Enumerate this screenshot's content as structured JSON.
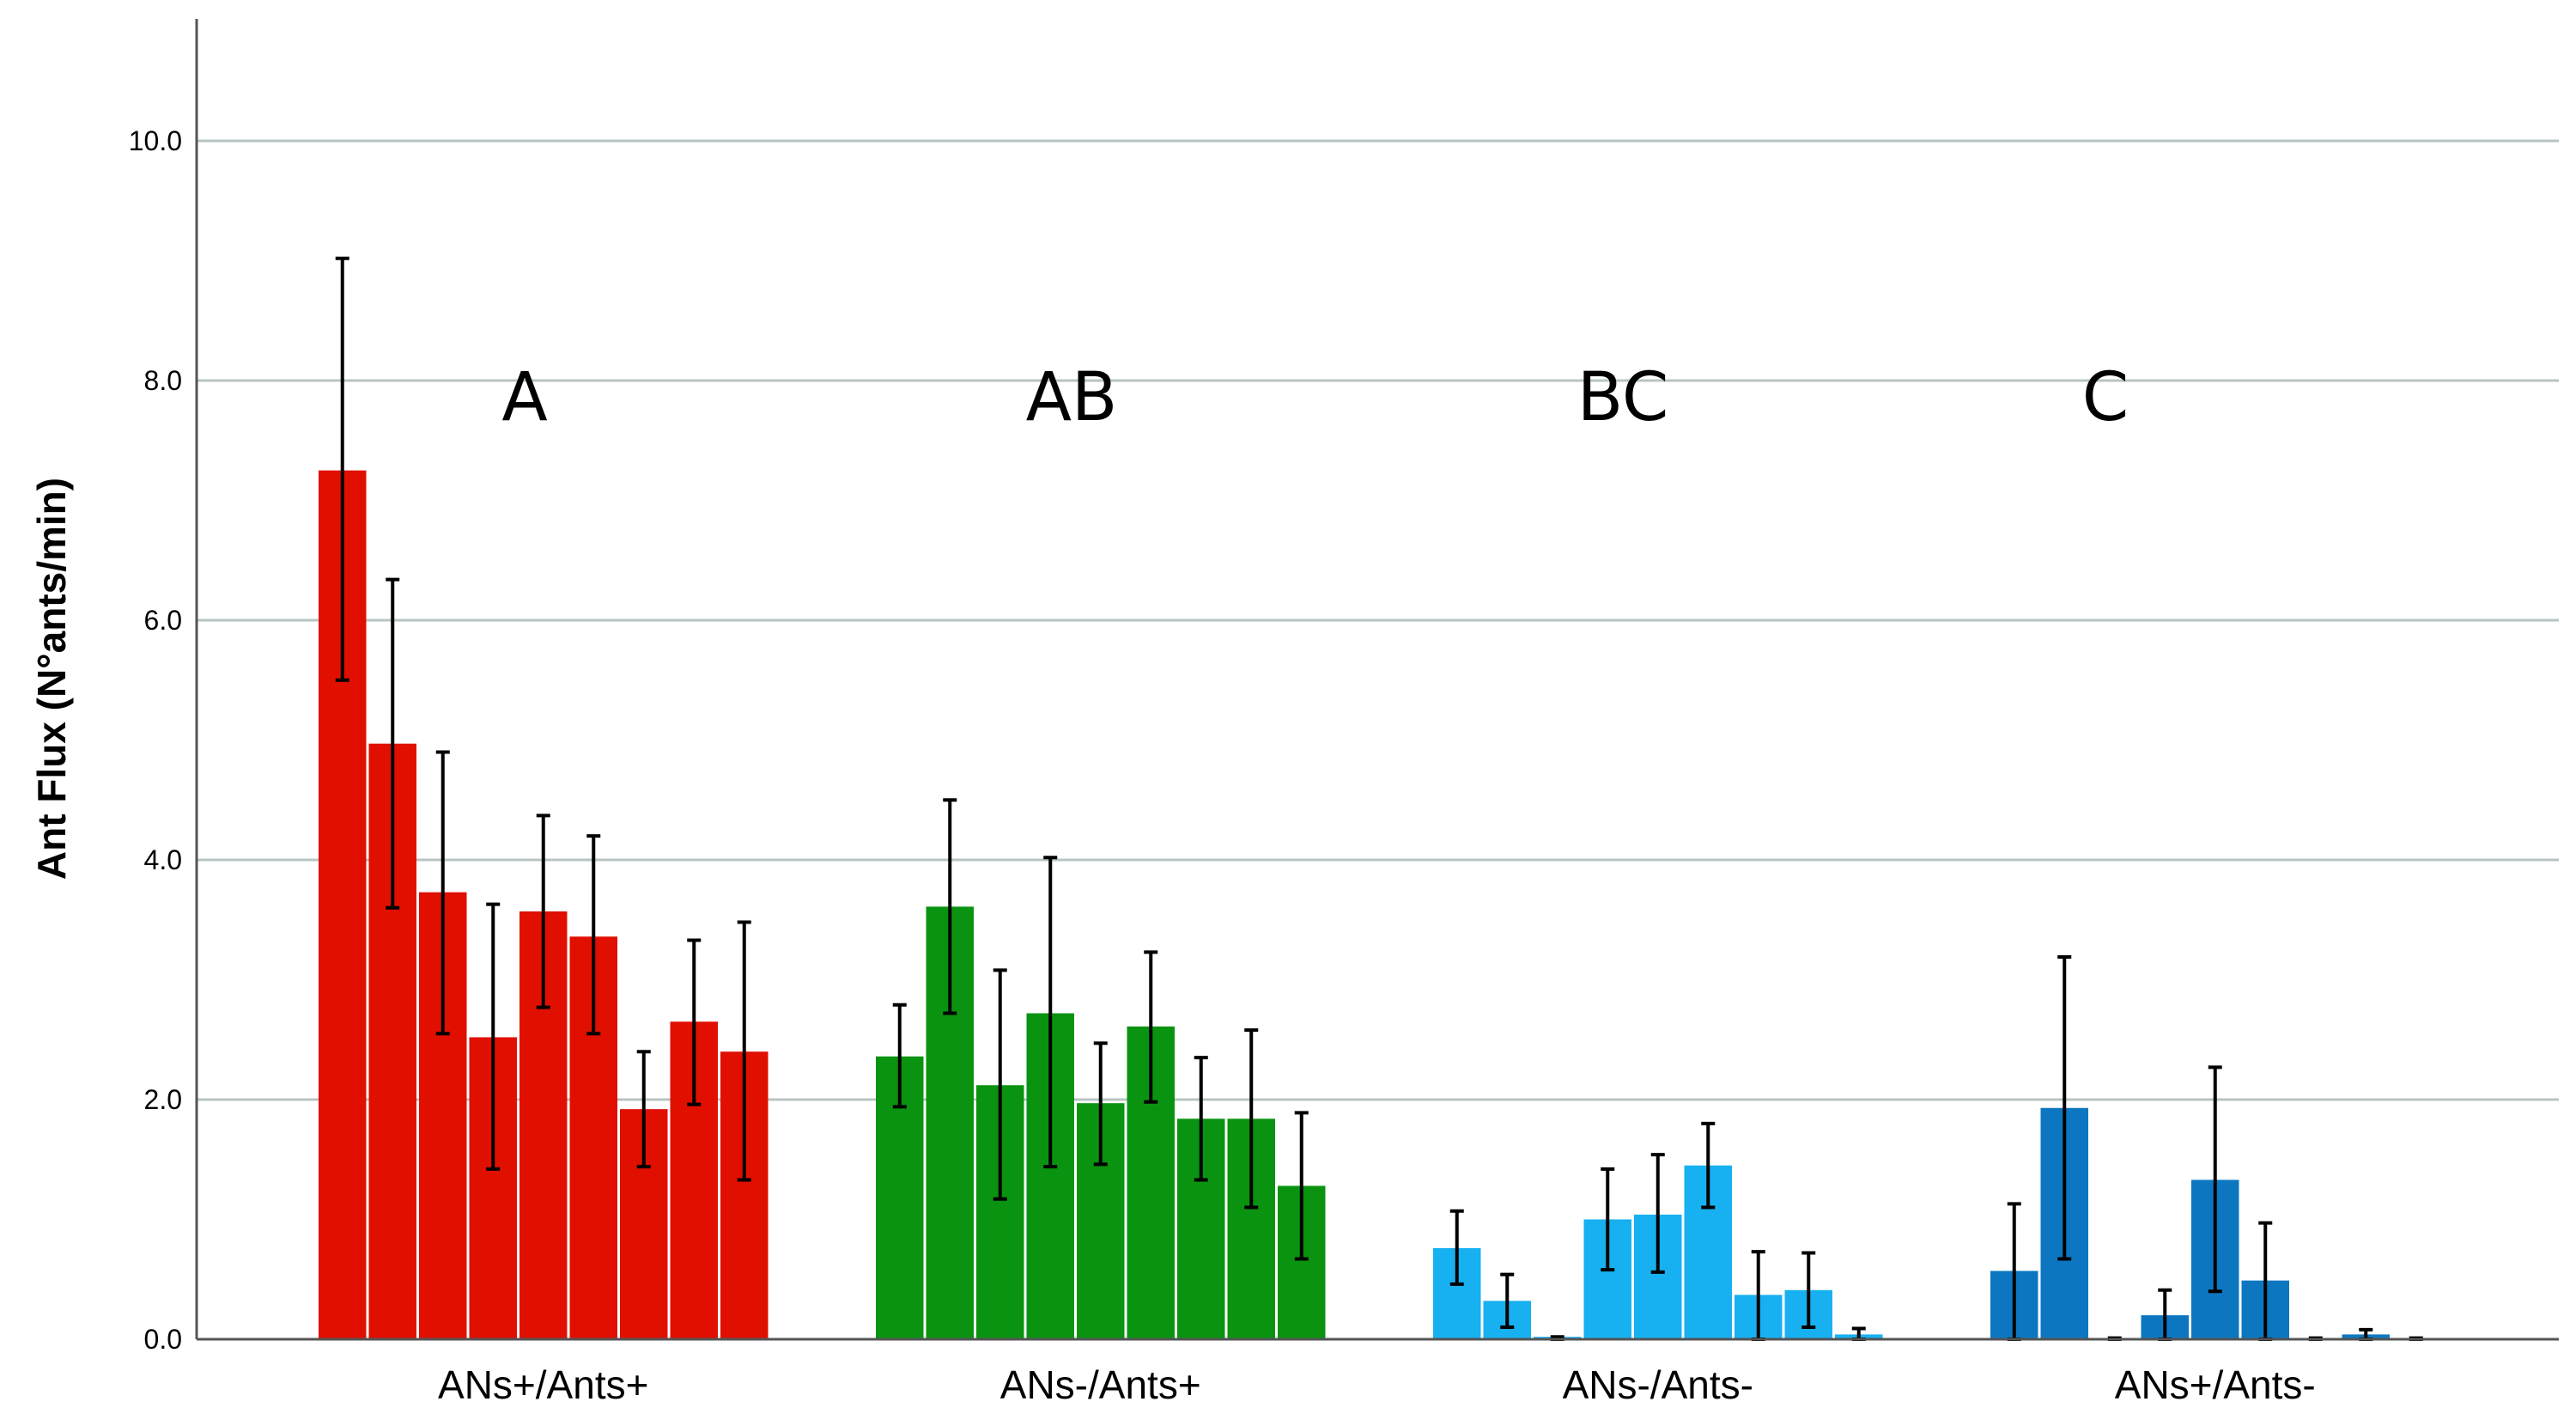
{
  "chart_data": {
    "type": "bar",
    "ylabel": "Ant Flux (N°ants/min)",
    "xlabel": "",
    "ylim": [
      0,
      11
    ],
    "yticks": [
      0,
      2,
      4,
      6,
      8,
      10
    ],
    "ytick_labels": [
      "0.0",
      "2.0",
      "4.0",
      "6.0",
      "8.0",
      "10.0"
    ],
    "grid": true,
    "groups": [
      {
        "name": "ANs+/Ants+",
        "letter": "A",
        "color": "#E00F00",
        "values": [
          7.25,
          4.97,
          3.73,
          2.52,
          3.57,
          3.36,
          1.92,
          2.65,
          2.4
        ],
        "error_low": [
          5.5,
          3.6,
          2.55,
          1.42,
          2.77,
          2.55,
          1.44,
          1.96,
          1.33
        ],
        "error_high": [
          9.02,
          6.34,
          4.9,
          3.63,
          4.37,
          4.2,
          2.4,
          3.33,
          3.48
        ]
      },
      {
        "name": "ANs-/Ants+",
        "letter": "AB",
        "color": "#0A9310",
        "values": [
          2.36,
          3.61,
          2.12,
          2.72,
          1.97,
          2.61,
          1.84,
          1.84,
          1.28
        ],
        "error_low": [
          1.94,
          2.72,
          1.17,
          1.44,
          1.46,
          1.98,
          1.33,
          1.1,
          0.67
        ],
        "error_high": [
          2.79,
          4.5,
          3.08,
          4.02,
          2.47,
          3.23,
          2.35,
          2.58,
          1.89
        ]
      },
      {
        "name": "ANs-/Ants-",
        "letter": "BC",
        "color": "#17B0F0",
        "values": [
          0.76,
          0.32,
          0.02,
          1.0,
          1.04,
          1.45,
          0.37,
          0.41,
          0.04
        ],
        "error_low": [
          0.46,
          0.1,
          0.0,
          0.58,
          0.56,
          1.1,
          0.0,
          0.1,
          0.0
        ],
        "error_high": [
          1.07,
          0.54,
          0.02,
          1.42,
          1.54,
          1.8,
          0.73,
          0.72,
          0.09
        ]
      },
      {
        "name": "ANs+/Ants-",
        "letter": "C",
        "color": "#0C77C0",
        "values": [
          0.57,
          1.93,
          0.01,
          0.2,
          1.33,
          0.49,
          0.01,
          0.04,
          0.01
        ],
        "error_low": [
          0.0,
          0.67,
          0.0,
          0.0,
          0.4,
          0.0,
          0.0,
          0.0,
          0.0
        ],
        "error_high": [
          1.13,
          3.19,
          0.01,
          0.41,
          2.27,
          0.97,
          0.01,
          0.08,
          0.01
        ]
      }
    ]
  }
}
